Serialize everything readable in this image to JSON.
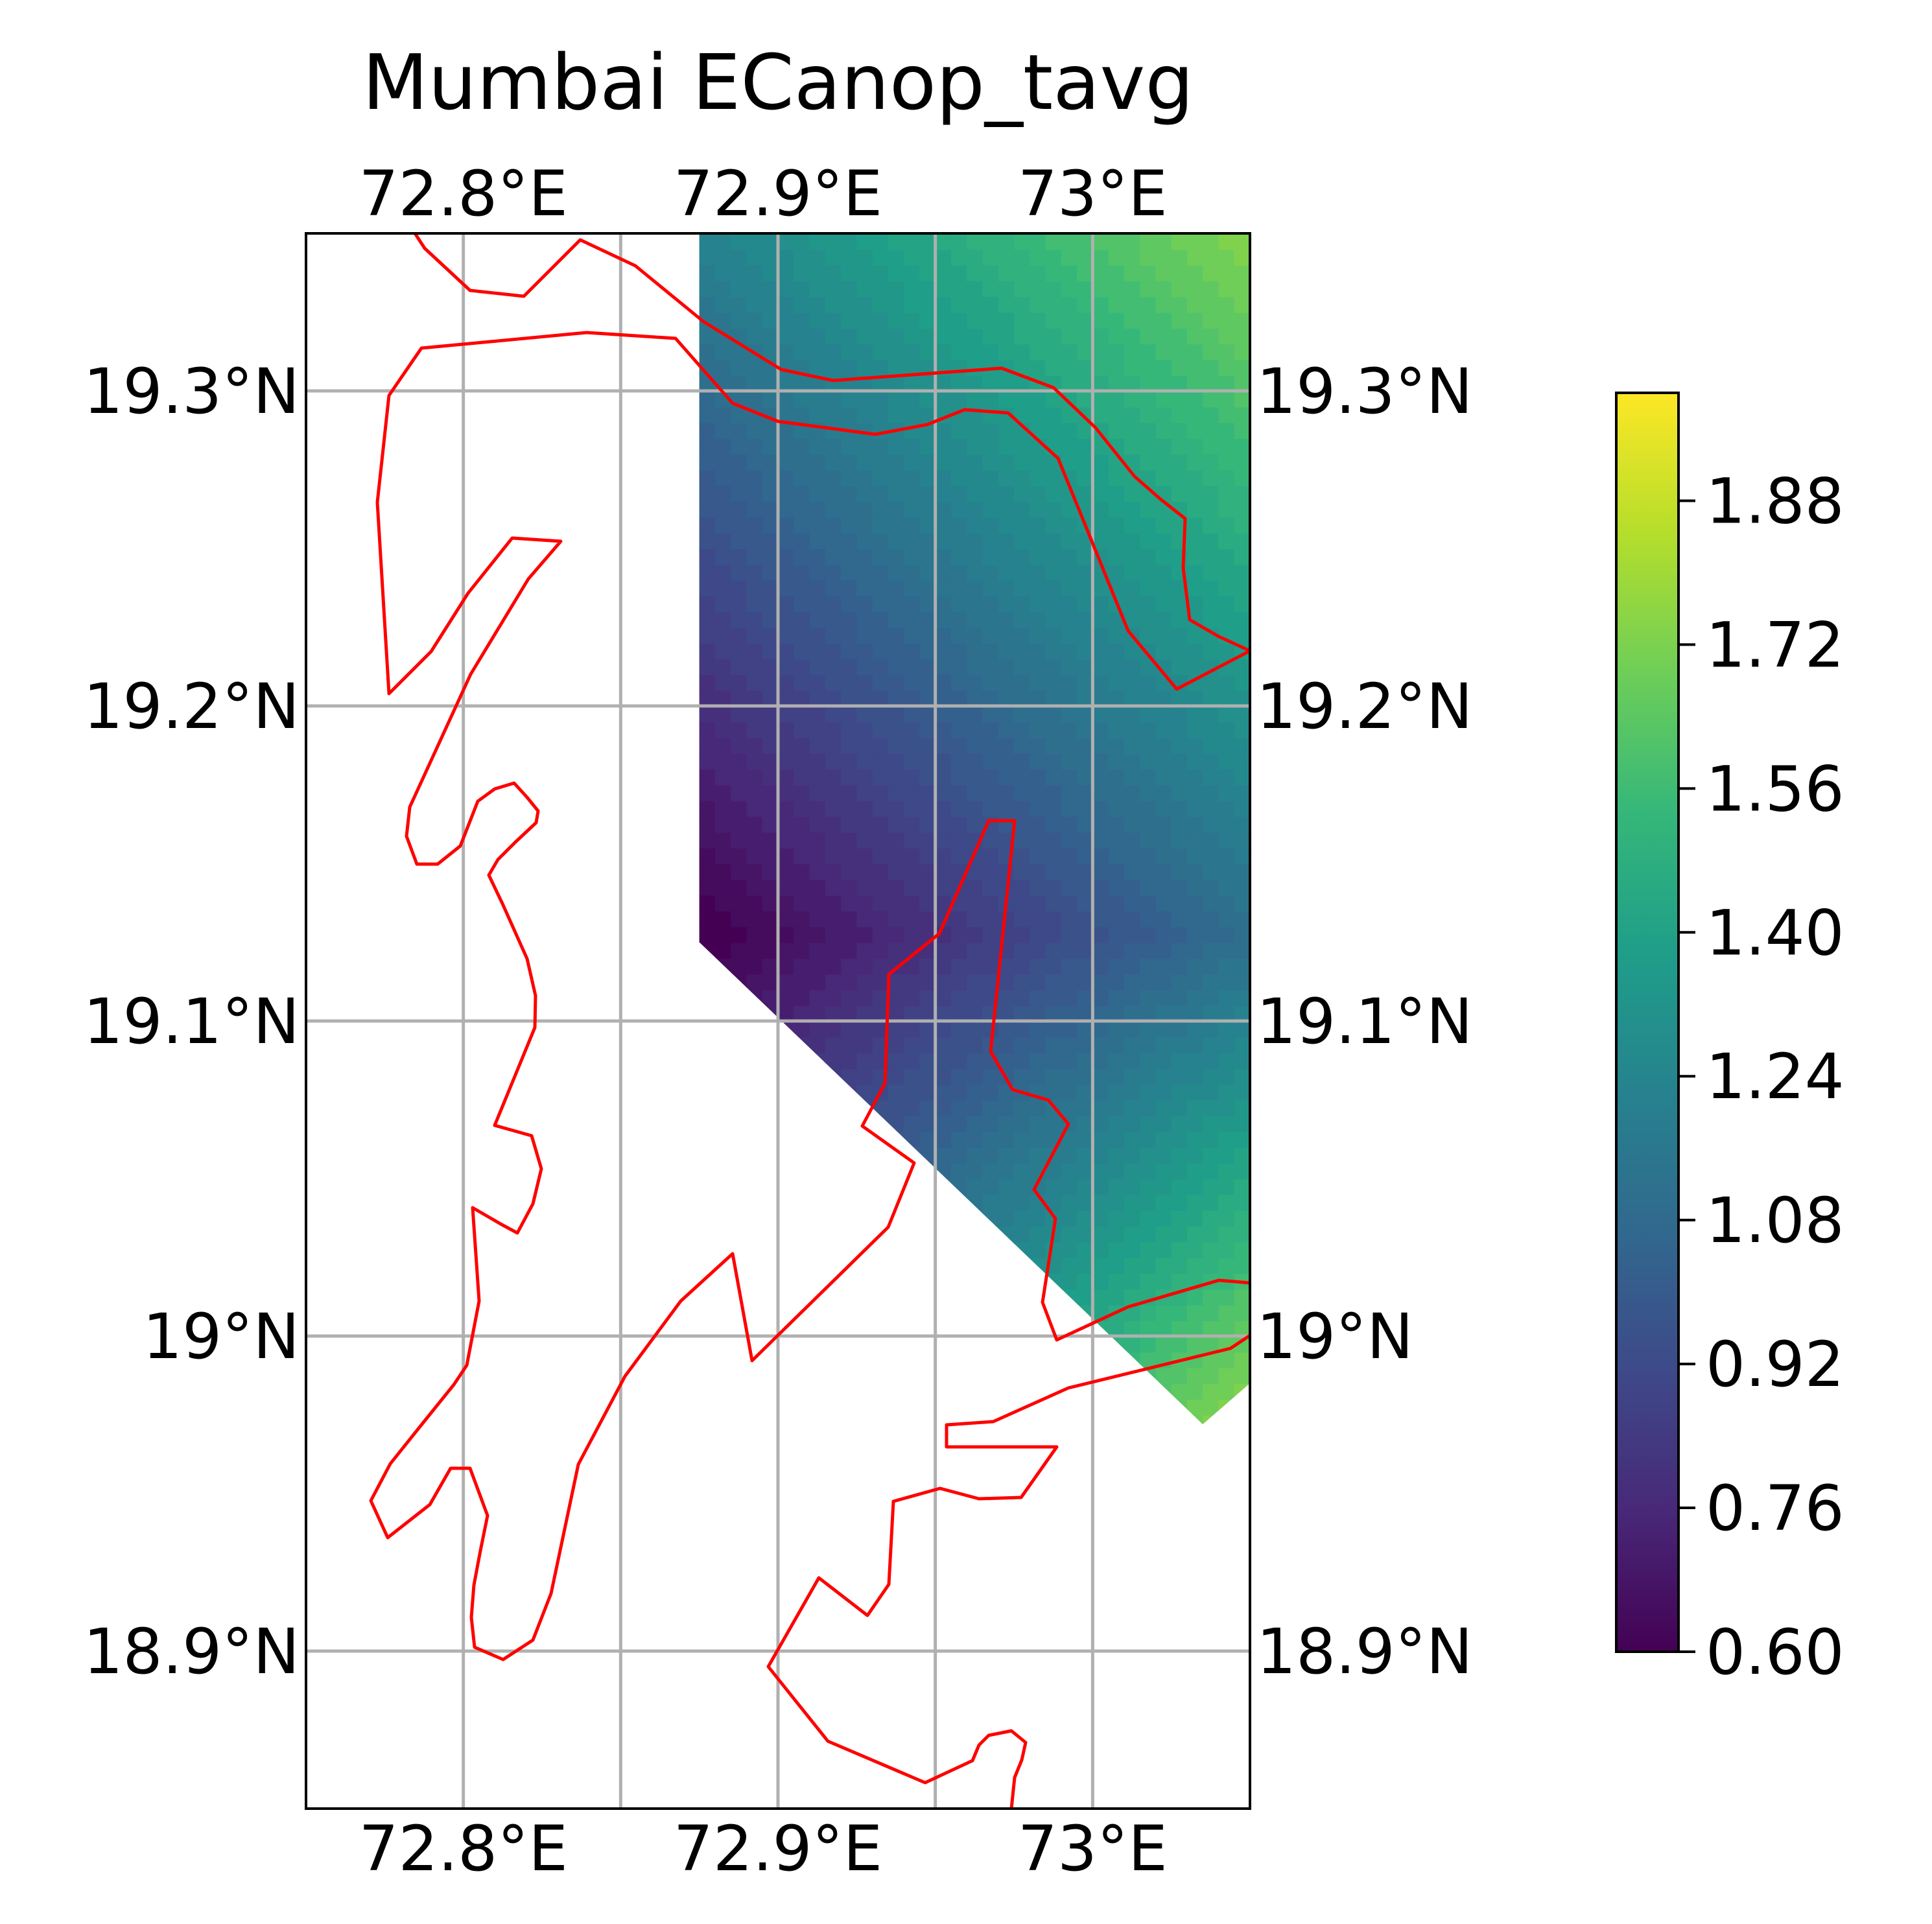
{
  "title": "Mumbai ECanop_tavg",
  "map": {
    "lon_range": [
      72.75,
      73.05
    ],
    "lat_range": [
      18.85,
      19.35
    ],
    "lon_ticks": [
      72.8,
      72.85,
      72.9,
      72.95,
      73.0
    ],
    "lon_tick_labels": {
      "72.8": "72.8°E",
      "72.9": "72.9°E",
      "73.0": "73°E"
    },
    "lat_ticks": [
      18.9,
      19.0,
      19.1,
      19.2,
      19.3
    ],
    "lat_tick_labels": [
      "18.9°N",
      "19°N",
      "19.1°N",
      "19.2°N",
      "19.3°N"
    ],
    "gridlines": true,
    "coastline_color": "#ff0000",
    "grid_color": "#b0b0b0"
  },
  "field": {
    "variable": "ECanop_tavg",
    "min_value": 0.6,
    "max_value": 2.0,
    "minimum_near": [
      72.875,
      19.125
    ],
    "maximum_near": [
      73.04,
      18.99
    ]
  },
  "colorbar": {
    "colormap": "viridis",
    "range": [
      0.6,
      2.0
    ],
    "ticks": [
      "0.60",
      "0.76",
      "0.92",
      "1.08",
      "1.24",
      "1.40",
      "1.56",
      "1.72",
      "1.88"
    ]
  }
}
